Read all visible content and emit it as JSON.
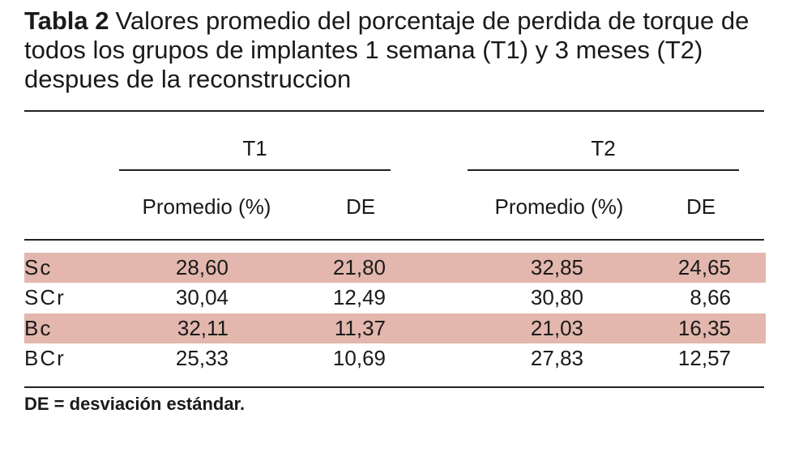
{
  "title": {
    "label": "Tabla 2",
    "text": "Valores promedio del porcentaje de perdida de torque de todos los grupos de implantes 1 semana (T1) y 3 meses (T2) despues de la reconstruccion"
  },
  "table": {
    "groups": [
      "T1",
      "T2"
    ],
    "columns": [
      "Promedio (%)",
      "DE",
      "Promedio (%)",
      "DE"
    ],
    "rows": [
      [
        "Sc",
        "28,60",
        "21,80",
        "32,85",
        "24,65"
      ],
      [
        "SCr",
        "30,04",
        "12,49",
        "30,80",
        "8,66"
      ],
      [
        "Bc",
        "32,11",
        "11,37",
        "21,03",
        "16,35"
      ],
      [
        "BCr",
        "25,33",
        "10,69",
        "27,83",
        "12,57"
      ]
    ]
  },
  "footnote": "DE = desviación estándar."
}
